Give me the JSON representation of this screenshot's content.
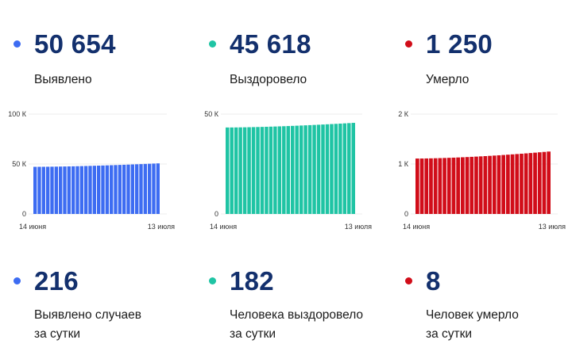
{
  "totals": [
    {
      "value": "50 654",
      "label": "Выявлено",
      "color": "#3d6cf2"
    },
    {
      "value": "45 618",
      "label": "Выздоровело",
      "color": "#1fc4a4"
    },
    {
      "value": "1 250",
      "label": "Умерло",
      "color": "#d10d19"
    }
  ],
  "daily": [
    {
      "value": "216",
      "label_line1": "Выявлено случаев",
      "label_line2": "за сутки",
      "color": "#3d6cf2"
    },
    {
      "value": "182",
      "label_line1": "Человека выздоровело",
      "label_line2": "за сутки",
      "color": "#1fc4a4"
    },
    {
      "value": "8",
      "label_line1": "Человек умерло",
      "label_line2": "за сутки",
      "color": "#d10d19"
    }
  ],
  "chart_data": [
    {
      "type": "bar",
      "color": "#3d6cf2",
      "y_ticks": [
        "100 К",
        "50 К",
        "0"
      ],
      "y_tick_values": [
        100000,
        50000,
        0
      ],
      "ylim": [
        0,
        100000
      ],
      "x_tick_labels": [
        "14 июня",
        "13 июля"
      ],
      "start_value": 47200,
      "end_value": 50654,
      "bar_count": 30
    },
    {
      "type": "bar",
      "color": "#1fc4a4",
      "y_ticks": [
        "50 К",
        "0"
      ],
      "y_tick_values": [
        50000,
        0
      ],
      "ylim": [
        0,
        50000
      ],
      "x_tick_labels": [
        "14 июня",
        "13 июля"
      ],
      "start_value": 43300,
      "end_value": 45618,
      "bar_count": 30
    },
    {
      "type": "bar",
      "color": "#d10d19",
      "y_ticks": [
        "2 К",
        "1 К",
        "0"
      ],
      "y_tick_values": [
        2000,
        1000,
        0
      ],
      "ylim": [
        0,
        2000
      ],
      "x_tick_labels": [
        "14 июня",
        "13 июля"
      ],
      "start_value": 1110,
      "end_value": 1250,
      "bar_count": 30
    }
  ]
}
